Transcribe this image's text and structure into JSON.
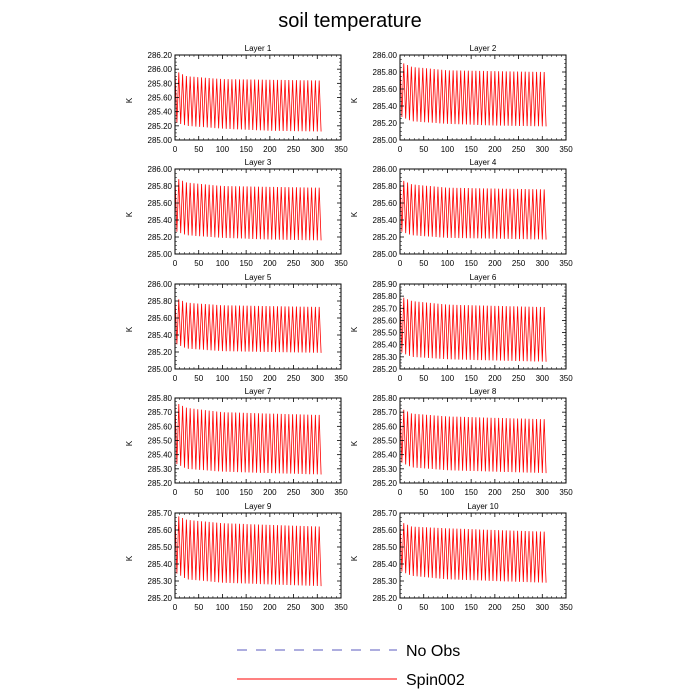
{
  "figure": {
    "title": "soil temperature",
    "legend": {
      "placement": "bottom-center",
      "entries": [
        {
          "label": "No Obs",
          "color": "#5b5bbf",
          "dash": "dashed"
        },
        {
          "label": "Spin002",
          "color": "#ff0000",
          "dash": "solid"
        }
      ]
    }
  },
  "chart_data": [
    {
      "type": "line",
      "title": "Layer 1",
      "ylabel": "K",
      "xlim": [
        0,
        350
      ],
      "ylim": [
        285.0,
        286.2
      ],
      "xticks": [
        "0",
        "50",
        "100",
        "150",
        "200",
        "250",
        "300",
        "350"
      ],
      "yticks": [
        "285.00",
        "285.20",
        "285.40",
        "285.60",
        "285.80",
        "286.00",
        "286.20"
      ],
      "series": [
        {
          "name": "No Obs",
          "color": "#5b5bbf",
          "x": [],
          "y": []
        },
        {
          "name": "Spin002",
          "color": "#ff0000",
          "x_range": [
            0,
            308
          ],
          "period": 8,
          "upper_envelope": [
            [
              0,
              285.98
            ],
            [
              25,
              285.9
            ],
            [
              100,
              285.86
            ],
            [
              200,
              285.85
            ],
            [
              308,
              285.84
            ]
          ],
          "lower_envelope": [
            [
              0,
              285.25
            ],
            [
              25,
              285.2
            ],
            [
              100,
              285.16
            ],
            [
              200,
              285.13
            ],
            [
              308,
              285.12
            ]
          ]
        }
      ]
    },
    {
      "type": "line",
      "title": "Layer 2",
      "ylabel": "K",
      "xlim": [
        0,
        350
      ],
      "ylim": [
        285.0,
        286.0
      ],
      "xticks": [
        "0",
        "50",
        "100",
        "150",
        "200",
        "250",
        "300",
        "350"
      ],
      "yticks": [
        "285.00",
        "285.20",
        "285.40",
        "285.60",
        "285.80",
        "286.00"
      ],
      "series": [
        {
          "name": "No Obs",
          "color": "#5b5bbf",
          "x": [],
          "y": []
        },
        {
          "name": "Spin002",
          "color": "#ff0000",
          "x_range": [
            0,
            308
          ],
          "period": 8,
          "upper_envelope": [
            [
              0,
              285.92
            ],
            [
              25,
              285.86
            ],
            [
              100,
              285.82
            ],
            [
              200,
              285.81
            ],
            [
              308,
              285.8
            ]
          ],
          "lower_envelope": [
            [
              0,
              285.28
            ],
            [
              25,
              285.22
            ],
            [
              100,
              285.19
            ],
            [
              200,
              285.17
            ],
            [
              308,
              285.16
            ]
          ]
        }
      ]
    },
    {
      "type": "line",
      "title": "Layer 3",
      "ylabel": "K",
      "xlim": [
        0,
        350
      ],
      "ylim": [
        285.0,
        286.0
      ],
      "xticks": [
        "0",
        "50",
        "100",
        "150",
        "200",
        "250",
        "300",
        "350"
      ],
      "yticks": [
        "285.00",
        "285.20",
        "285.40",
        "285.60",
        "285.80",
        "286.00"
      ],
      "series": [
        {
          "name": "No Obs",
          "color": "#5b5bbf",
          "x": [],
          "y": []
        },
        {
          "name": "Spin002",
          "color": "#ff0000",
          "x_range": [
            0,
            308
          ],
          "period": 8,
          "upper_envelope": [
            [
              0,
              285.9
            ],
            [
              25,
              285.84
            ],
            [
              100,
              285.8
            ],
            [
              200,
              285.79
            ],
            [
              308,
              285.78
            ]
          ],
          "lower_envelope": [
            [
              0,
              285.27
            ],
            [
              25,
              285.22
            ],
            [
              100,
              285.19
            ],
            [
              200,
              285.17
            ],
            [
              308,
              285.16
            ]
          ]
        }
      ]
    },
    {
      "type": "line",
      "title": "Layer 4",
      "ylabel": "K",
      "xlim": [
        0,
        350
      ],
      "ylim": [
        285.0,
        286.0
      ],
      "xticks": [
        "0",
        "50",
        "100",
        "150",
        "200",
        "250",
        "300",
        "350"
      ],
      "yticks": [
        "285.00",
        "285.20",
        "285.40",
        "285.60",
        "285.80",
        "286.00"
      ],
      "series": [
        {
          "name": "No Obs",
          "color": "#5b5bbf",
          "x": [],
          "y": []
        },
        {
          "name": "Spin002",
          "color": "#ff0000",
          "x_range": [
            0,
            308
          ],
          "period": 8,
          "upper_envelope": [
            [
              0,
              285.88
            ],
            [
              25,
              285.82
            ],
            [
              100,
              285.78
            ],
            [
              200,
              285.77
            ],
            [
              308,
              285.76
            ]
          ],
          "lower_envelope": [
            [
              0,
              285.27
            ],
            [
              25,
              285.22
            ],
            [
              100,
              285.19
            ],
            [
              200,
              285.18
            ],
            [
              308,
              285.17
            ]
          ]
        }
      ]
    },
    {
      "type": "line",
      "title": "Layer 5",
      "ylabel": "K",
      "xlim": [
        0,
        350
      ],
      "ylim": [
        285.0,
        286.0
      ],
      "xticks": [
        "0",
        "50",
        "100",
        "150",
        "200",
        "250",
        "300",
        "350"
      ],
      "yticks": [
        "285.00",
        "285.20",
        "285.40",
        "285.60",
        "285.80",
        "286.00"
      ],
      "series": [
        {
          "name": "No Obs",
          "color": "#5b5bbf",
          "x": [],
          "y": []
        },
        {
          "name": "Spin002",
          "color": "#ff0000",
          "x_range": [
            0,
            308
          ],
          "period": 8,
          "upper_envelope": [
            [
              0,
              285.84
            ],
            [
              25,
              285.78
            ],
            [
              100,
              285.75
            ],
            [
              200,
              285.74
            ],
            [
              308,
              285.73
            ]
          ],
          "lower_envelope": [
            [
              0,
              285.3
            ],
            [
              25,
              285.24
            ],
            [
              100,
              285.21
            ],
            [
              200,
              285.2
            ],
            [
              308,
              285.19
            ]
          ]
        }
      ]
    },
    {
      "type": "line",
      "title": "Layer 6",
      "ylabel": "K",
      "xlim": [
        0,
        350
      ],
      "ylim": [
        285.2,
        285.9
      ],
      "xticks": [
        "0",
        "50",
        "100",
        "150",
        "200",
        "250",
        "300",
        "350"
      ],
      "yticks": [
        "285.20",
        "285.30",
        "285.40",
        "285.50",
        "285.60",
        "285.70",
        "285.80",
        "285.90"
      ],
      "series": [
        {
          "name": "No Obs",
          "color": "#5b5bbf",
          "x": [],
          "y": []
        },
        {
          "name": "Spin002",
          "color": "#ff0000",
          "x_range": [
            0,
            308
          ],
          "period": 8,
          "upper_envelope": [
            [
              0,
              285.8
            ],
            [
              25,
              285.76
            ],
            [
              100,
              285.73
            ],
            [
              200,
              285.72
            ],
            [
              308,
              285.71
            ]
          ],
          "lower_envelope": [
            [
              0,
              285.34
            ],
            [
              25,
              285.3
            ],
            [
              100,
              285.28
            ],
            [
              200,
              285.27
            ],
            [
              308,
              285.26
            ]
          ]
        }
      ]
    },
    {
      "type": "line",
      "title": "Layer 7",
      "ylabel": "K",
      "xlim": [
        0,
        350
      ],
      "ylim": [
        285.2,
        285.8
      ],
      "xticks": [
        "0",
        "50",
        "100",
        "150",
        "200",
        "250",
        "300",
        "350"
      ],
      "yticks": [
        "285.20",
        "285.30",
        "285.40",
        "285.50",
        "285.60",
        "285.70",
        "285.80"
      ],
      "series": [
        {
          "name": "No Obs",
          "color": "#5b5bbf",
          "x": [],
          "y": []
        },
        {
          "name": "Spin002",
          "color": "#ff0000",
          "x_range": [
            0,
            308
          ],
          "period": 8,
          "upper_envelope": [
            [
              0,
              285.77
            ],
            [
              25,
              285.73
            ],
            [
              100,
              285.7
            ],
            [
              200,
              285.69
            ],
            [
              308,
              285.68
            ]
          ],
          "lower_envelope": [
            [
              0,
              285.34
            ],
            [
              25,
              285.3
            ],
            [
              100,
              285.28
            ],
            [
              200,
              285.27
            ],
            [
              308,
              285.26
            ]
          ]
        }
      ]
    },
    {
      "type": "line",
      "title": "Layer 8",
      "ylabel": "K",
      "xlim": [
        0,
        350
      ],
      "ylim": [
        285.2,
        285.8
      ],
      "xticks": [
        "0",
        "50",
        "100",
        "150",
        "200",
        "250",
        "300",
        "350"
      ],
      "yticks": [
        "285.20",
        "285.30",
        "285.40",
        "285.50",
        "285.60",
        "285.70",
        "285.80"
      ],
      "series": [
        {
          "name": "No Obs",
          "color": "#5b5bbf",
          "x": [],
          "y": []
        },
        {
          "name": "Spin002",
          "color": "#ff0000",
          "x_range": [
            0,
            308
          ],
          "period": 8,
          "upper_envelope": [
            [
              0,
              285.73
            ],
            [
              25,
              285.69
            ],
            [
              100,
              285.67
            ],
            [
              200,
              285.66
            ],
            [
              308,
              285.65
            ]
          ],
          "lower_envelope": [
            [
              0,
              285.35
            ],
            [
              25,
              285.31
            ],
            [
              100,
              285.29
            ],
            [
              200,
              285.28
            ],
            [
              308,
              285.27
            ]
          ]
        }
      ]
    },
    {
      "type": "line",
      "title": "Layer 9",
      "ylabel": "K",
      "xlim": [
        0,
        350
      ],
      "ylim": [
        285.2,
        285.7
      ],
      "xticks": [
        "0",
        "50",
        "100",
        "150",
        "200",
        "250",
        "300",
        "350"
      ],
      "yticks": [
        "285.20",
        "285.30",
        "285.40",
        "285.50",
        "285.60",
        "285.70"
      ],
      "series": [
        {
          "name": "No Obs",
          "color": "#5b5bbf",
          "x": [],
          "y": []
        },
        {
          "name": "Spin002",
          "color": "#ff0000",
          "x_range": [
            0,
            308
          ],
          "period": 8,
          "upper_envelope": [
            [
              0,
              285.69
            ],
            [
              25,
              285.66
            ],
            [
              100,
              285.64
            ],
            [
              200,
              285.63
            ],
            [
              308,
              285.62
            ]
          ],
          "lower_envelope": [
            [
              0,
              285.35
            ],
            [
              25,
              285.31
            ],
            [
              100,
              285.29
            ],
            [
              200,
              285.28
            ],
            [
              308,
              285.27
            ]
          ]
        }
      ]
    },
    {
      "type": "line",
      "title": "Layer 10",
      "ylabel": "K",
      "xlim": [
        0,
        350
      ],
      "ylim": [
        285.2,
        285.7
      ],
      "xticks": [
        "0",
        "50",
        "100",
        "150",
        "200",
        "250",
        "300",
        "350"
      ],
      "yticks": [
        "285.20",
        "285.30",
        "285.40",
        "285.50",
        "285.60",
        "285.70"
      ],
      "series": [
        {
          "name": "No Obs",
          "color": "#5b5bbf",
          "x": [],
          "y": []
        },
        {
          "name": "Spin002",
          "color": "#ff0000",
          "x_range": [
            0,
            308
          ],
          "period": 8,
          "upper_envelope": [
            [
              0,
              285.65
            ],
            [
              25,
              285.62
            ],
            [
              100,
              285.61
            ],
            [
              200,
              285.6
            ],
            [
              308,
              285.59
            ]
          ],
          "lower_envelope": [
            [
              0,
              285.36
            ],
            [
              25,
              285.33
            ],
            [
              100,
              285.31
            ],
            [
              200,
              285.3
            ],
            [
              308,
              285.29
            ]
          ]
        }
      ]
    }
  ]
}
